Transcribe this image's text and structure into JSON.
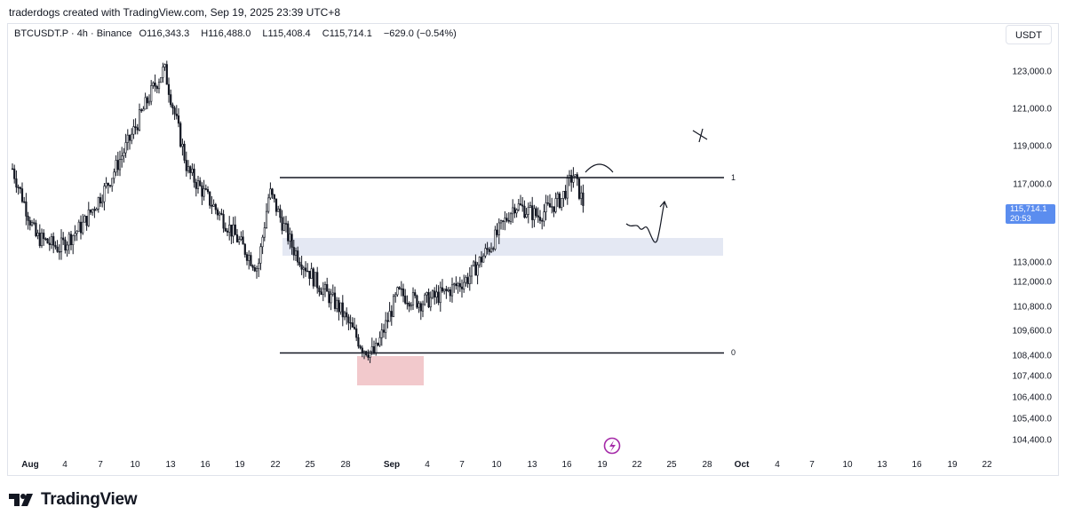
{
  "header": {
    "caption": "traderdogs created with TradingView.com, Sep 19, 2025 23:39 UTC+8",
    "currency_button": "USDT"
  },
  "legend": {
    "symbol": "BTCUSDT.P · 4h · Binance",
    "open_label": "O",
    "open": "116,343.3",
    "high_label": "H",
    "high": "116,488.0",
    "low_label": "L",
    "low": "115,408.4",
    "close_label": "C",
    "close": "115,714.1",
    "change": "−629.0 (−0.54%)"
  },
  "price_axis": [
    "123,000.0",
    "121,000.0",
    "119,000.0",
    "117,000.0",
    "113,000.0",
    "112,000.0",
    "110,800.0",
    "109,600.0",
    "108,400.0",
    "107,400.0",
    "106,400.0",
    "105,400.0",
    "104,400.0"
  ],
  "price_tag": {
    "price": "115,714.1",
    "countdown": "20:53"
  },
  "time_axis": [
    "Aug",
    "4",
    "7",
    "10",
    "13",
    "16",
    "19",
    "22",
    "25",
    "28",
    "Sep",
    "4",
    "7",
    "10",
    "13",
    "16",
    "19",
    "22",
    "25",
    "28",
    "Oct",
    "4",
    "7",
    "10",
    "13",
    "16",
    "19",
    "22"
  ],
  "fib_labels": {
    "top": "1",
    "bottom": "0"
  },
  "footer": {
    "brand": "TradingView"
  },
  "colors": {
    "candle": "#131722",
    "zone_blue": "#e4e8f3",
    "zone_red": "#f2c9cc",
    "accent_blue": "#5b8def",
    "logo_purple": "#a52aa8"
  },
  "chart_data": {
    "type": "candlestick",
    "symbol": "BTCUSDT.P",
    "interval": "4h",
    "exchange": "Binance",
    "last_price": 115714.1,
    "x_range": [
      "Aug",
      "22"
    ],
    "fib_levels": [
      {
        "label": "1",
        "price": 117200
      },
      {
        "label": "0",
        "price": 108600
      }
    ],
    "zones": [
      {
        "name": "supply-demand-zone",
        "from": "Aug 22",
        "to": "Sep 23",
        "price_low": 113900,
        "price_high": 114600
      },
      {
        "name": "support-zone",
        "from": "Aug 30",
        "to": "Sep 4",
        "price_low": 107500,
        "price_high": 108500
      }
    ],
    "close_path": [
      [
        "Aug 1",
        117800
      ],
      [
        "Aug 3",
        114200
      ],
      [
        "Aug 5",
        113600
      ],
      [
        "Aug 7",
        114800
      ],
      [
        "Aug 9",
        116800
      ],
      [
        "Aug 11",
        119300
      ],
      [
        "Aug 13",
        122000
      ],
      [
        "Aug 14",
        123100
      ],
      [
        "Aug 16",
        117700
      ],
      [
        "Aug 18",
        116000
      ],
      [
        "Aug 20",
        114300
      ],
      [
        "Aug 22",
        112500
      ],
      [
        "Aug 23",
        116600
      ],
      [
        "Aug 25",
        113600
      ],
      [
        "Aug 27",
        111800
      ],
      [
        "Aug 29",
        110400
      ],
      [
        "Aug 31",
        108300
      ],
      [
        "Sep 1",
        108000
      ],
      [
        "Sep 3",
        111200
      ],
      [
        "Sep 5",
        110700
      ],
      [
        "Sep 7",
        111200
      ],
      [
        "Sep 9",
        112000
      ],
      [
        "Sep 11",
        113800
      ],
      [
        "Sep 13",
        115900
      ],
      [
        "Sep 15",
        115300
      ],
      [
        "Sep 17",
        116200
      ],
      [
        "Sep 18",
        117500
      ],
      [
        "Sep 19",
        115714.1
      ]
    ]
  }
}
